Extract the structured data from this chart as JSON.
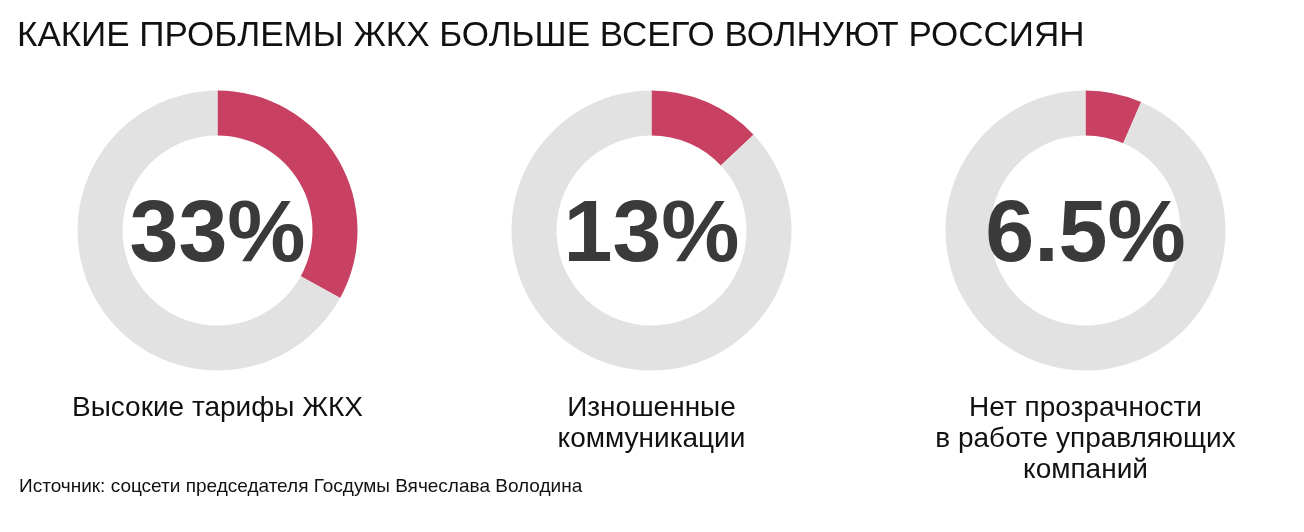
{
  "chart_data": [
    {
      "type": "donut",
      "title": "КАКИЕ ПРОБЛЕМЫ ЖКХ БОЛЬШЕ ВСЕГО ВОЛНУЮТ РОССИЯН",
      "xlabel": "Высокие тарифы ЖКХ",
      "categories": [
        null,
        null
      ],
      "values": [
        33,
        67
      ],
      "colors": [
        "#c94162",
        "#e2e2e2"
      ],
      "value_labels": [
        "33%",
        null
      ],
      "annotations": [
        "Источник: соцсети председателя Госдумы Вячеслава Володина"
      ]
    },
    {
      "type": "donut",
      "xlabel": "Изношенные\nкоммуникации",
      "categories": [
        null,
        null
      ],
      "values": [
        13,
        87
      ],
      "colors": [
        "#c94162",
        "#e2e2e2"
      ],
      "value_labels": [
        "13%",
        null
      ]
    },
    {
      "type": "donut",
      "xlabel": "Нет прозрачности\nв работе управляющих\nкомпаний",
      "categories": [
        null,
        null
      ],
      "values": [
        6.5,
        93.5
      ],
      "colors": [
        "#c94162",
        "#e2e2e2"
      ],
      "value_labels": [
        "6.5%",
        null
      ]
    }
  ]
}
